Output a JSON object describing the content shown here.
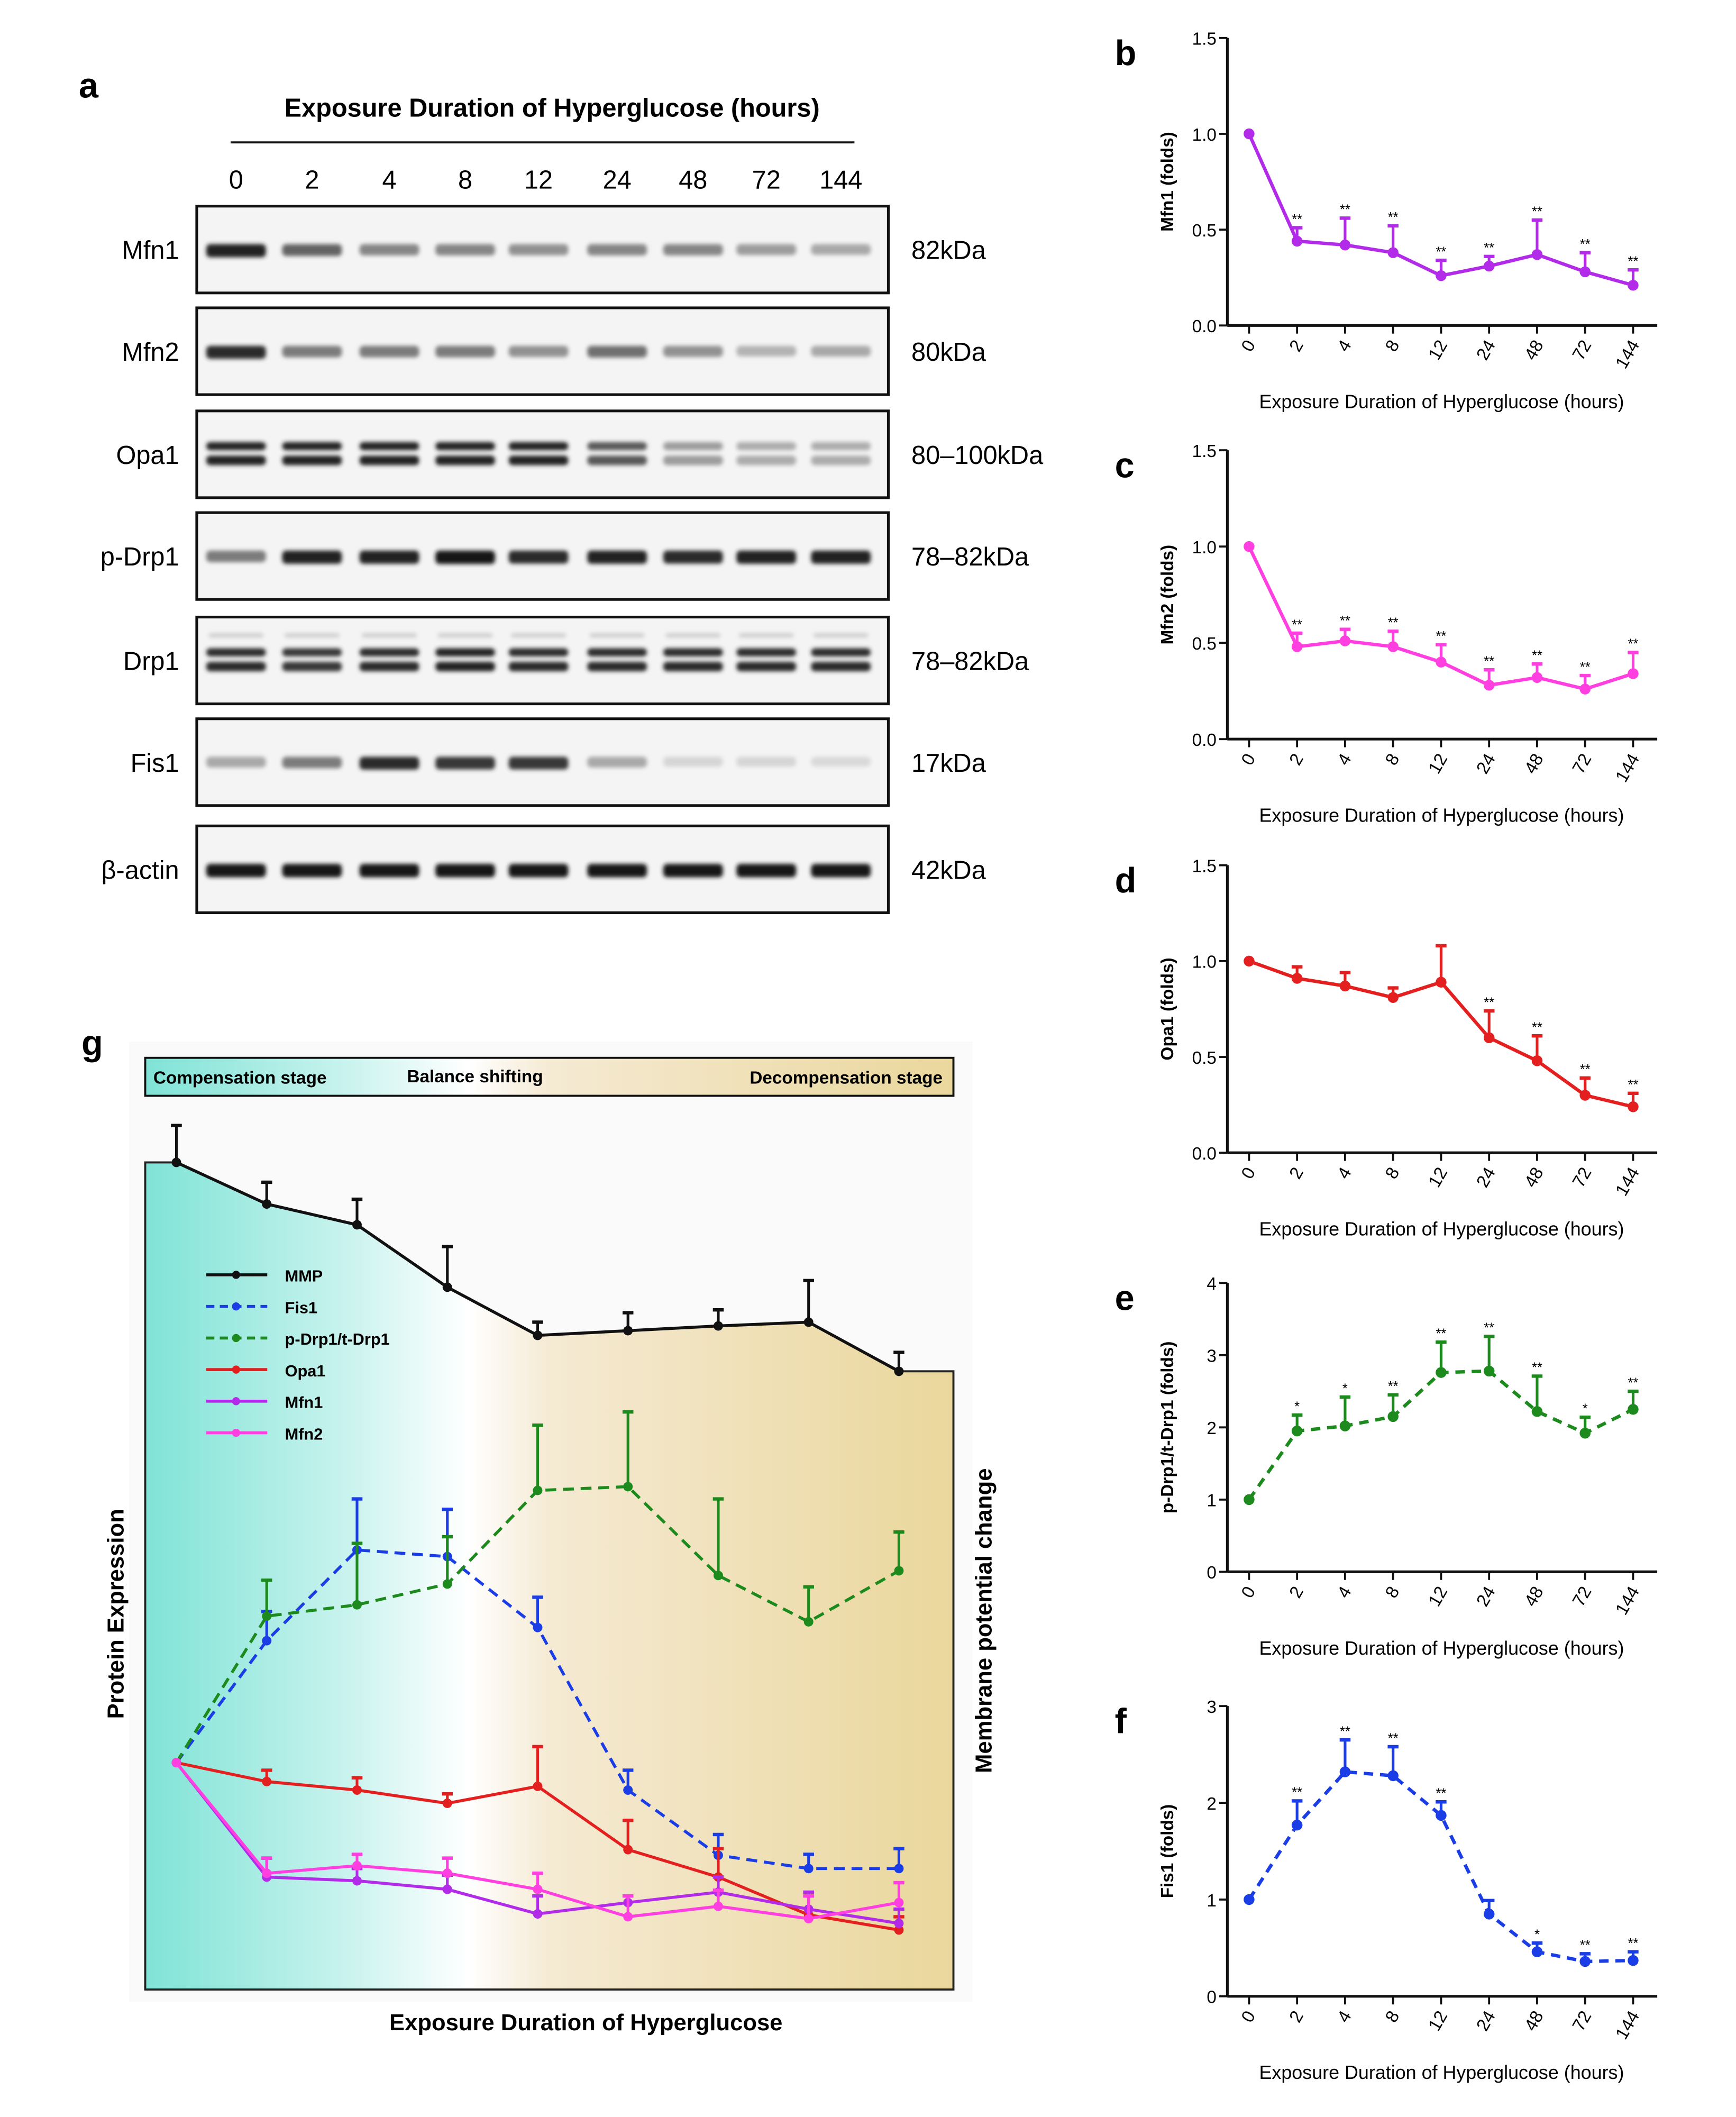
{
  "panel_labels": {
    "a": "a",
    "b": "b",
    "c": "c",
    "d": "d",
    "e": "e",
    "f": "f",
    "g": "g"
  },
  "blot": {
    "title": "Exposure Duration of Hyperglucose (hours)",
    "lanes": [
      "0",
      "2",
      "4",
      "8",
      "12",
      "24",
      "48",
      "72",
      "144"
    ],
    "rows": [
      {
        "label": "Mfn1",
        "kda": "82kDa",
        "bands": "single",
        "intensity": [
          0.9,
          0.6,
          0.45,
          0.45,
          0.4,
          0.45,
          0.45,
          0.35,
          0.3
        ]
      },
      {
        "label": "Mfn2",
        "kda": "80kDa",
        "bands": "single",
        "intensity": [
          0.85,
          0.5,
          0.5,
          0.5,
          0.4,
          0.55,
          0.4,
          0.25,
          0.3
        ]
      },
      {
        "label": "Opa1",
        "kda": "80–100kDa",
        "bands": "double",
        "intensity": [
          0.9,
          0.9,
          0.9,
          0.9,
          0.9,
          0.65,
          0.35,
          0.28,
          0.28
        ]
      },
      {
        "label": "p-Drp1",
        "kda": "78–82kDa",
        "bands": "single",
        "intensity": [
          0.5,
          0.9,
          0.9,
          0.95,
          0.85,
          0.9,
          0.85,
          0.9,
          0.9
        ]
      },
      {
        "label": "Drp1",
        "kda": "78–82kDa",
        "bands": "double",
        "intensity": [
          0.85,
          0.8,
          0.85,
          0.9,
          0.85,
          0.85,
          0.85,
          0.85,
          0.85
        ]
      },
      {
        "label": "Fis1",
        "kda": "17kDa",
        "bands": "single",
        "intensity": [
          0.3,
          0.5,
          0.85,
          0.8,
          0.8,
          0.3,
          0.1,
          0.1,
          0.08
        ]
      },
      {
        "label": "β-actin",
        "kda": "42kDa",
        "bands": "single",
        "intensity": [
          0.95,
          0.95,
          0.95,
          0.95,
          0.95,
          0.95,
          0.95,
          0.95,
          0.95
        ]
      }
    ]
  },
  "chart_data": [
    {
      "panel": "b",
      "type": "line",
      "categories": [
        "0",
        "2",
        "4",
        "8",
        "12",
        "24",
        "48",
        "72",
        "144"
      ],
      "values": [
        1.0,
        0.44,
        0.42,
        0.38,
        0.26,
        0.31,
        0.37,
        0.28,
        0.21
      ],
      "error_upper": [
        1.0,
        0.51,
        0.56,
        0.52,
        0.34,
        0.36,
        0.55,
        0.38,
        0.29
      ],
      "significance": [
        "",
        "**",
        "**",
        "**",
        "**",
        "**",
        "**",
        "**",
        "**"
      ],
      "ylabel": "Mfn1 (folds)",
      "xlabel": "Exposure Duration of Hyperglucose (hours)",
      "ylim": [
        0,
        1.5
      ],
      "yticks": [
        "0.0",
        "0.5",
        "1.0",
        "1.5"
      ],
      "color": "#b22be8",
      "dashed": false
    },
    {
      "panel": "c",
      "type": "line",
      "categories": [
        "0",
        "2",
        "4",
        "8",
        "12",
        "24",
        "48",
        "72",
        "144"
      ],
      "values": [
        1.0,
        0.48,
        0.51,
        0.48,
        0.4,
        0.28,
        0.32,
        0.26,
        0.34
      ],
      "error_upper": [
        1.0,
        0.55,
        0.57,
        0.56,
        0.49,
        0.36,
        0.39,
        0.33,
        0.45
      ],
      "significance": [
        "",
        "**",
        "**",
        "**",
        "**",
        "**",
        "**",
        "**",
        "**"
      ],
      "ylabel": "Mfn2 (folds)",
      "xlabel": "Exposure Duration of Hyperglucose (hours)",
      "ylim": [
        0,
        1.5
      ],
      "yticks": [
        "0.0",
        "0.5",
        "1.0",
        "1.5"
      ],
      "color": "#ff3fe0",
      "dashed": false
    },
    {
      "panel": "d",
      "type": "line",
      "categories": [
        "0",
        "2",
        "4",
        "8",
        "12",
        "24",
        "48",
        "72",
        "144"
      ],
      "values": [
        1.0,
        0.91,
        0.87,
        0.81,
        0.89,
        0.6,
        0.48,
        0.3,
        0.24
      ],
      "error_upper": [
        1.0,
        0.97,
        0.94,
        0.86,
        1.08,
        0.74,
        0.61,
        0.39,
        0.31
      ],
      "significance": [
        "",
        "",
        "",
        "",
        "",
        "**",
        "**",
        "**",
        "**"
      ],
      "ylabel": "Opa1 (folds)",
      "xlabel": "Exposure Duration of Hyperglucose (hours)",
      "ylim": [
        0,
        1.5
      ],
      "yticks": [
        "0.0",
        "0.5",
        "1.0",
        "1.5"
      ],
      "color": "#e3201f",
      "dashed": false
    },
    {
      "panel": "e",
      "type": "line",
      "categories": [
        "0",
        "2",
        "4",
        "8",
        "12",
        "24",
        "48",
        "72",
        "144"
      ],
      "values": [
        1.0,
        1.95,
        2.02,
        2.15,
        2.76,
        2.78,
        2.22,
        1.92,
        2.25
      ],
      "error_upper": [
        1.0,
        2.17,
        2.42,
        2.45,
        3.18,
        3.26,
        2.71,
        2.14,
        2.5
      ],
      "significance": [
        "",
        "*",
        "*",
        "**",
        "**",
        "**",
        "**",
        "*",
        "**"
      ],
      "ylabel": "p-Drp1/t-Drp1 (folds)",
      "xlabel": "Exposure Duration of Hyperglucose (hours)",
      "ylim": [
        0,
        4
      ],
      "yticks": [
        "0",
        "1",
        "2",
        "3",
        "4"
      ],
      "color": "#1d8a1d",
      "dashed": true
    },
    {
      "panel": "f",
      "type": "line",
      "categories": [
        "0",
        "2",
        "4",
        "8",
        "12",
        "24",
        "48",
        "72",
        "144"
      ],
      "values": [
        1.0,
        1.77,
        2.32,
        2.28,
        1.87,
        0.85,
        0.46,
        0.36,
        0.37
      ],
      "error_upper": [
        1.0,
        2.02,
        2.65,
        2.58,
        2.01,
        0.99,
        0.55,
        0.44,
        0.46
      ],
      "significance": [
        "",
        "**",
        "**",
        "**",
        "**",
        "",
        "*",
        "**",
        "**"
      ],
      "ylabel": "Fis1 (folds)",
      "xlabel": "Exposure Duration of Hyperglucose (hours)",
      "ylim": [
        0,
        3
      ],
      "yticks": [
        "0",
        "1",
        "2",
        "3"
      ],
      "color": "#1a3de6",
      "dashed": true
    },
    {
      "panel": "g",
      "type": "line",
      "ylim": [
        0,
        100
      ],
      "xlabel": "Exposure Duration of Hyperglucose",
      "ylabel": "Protein Expression",
      "ylabel_right": "Membrane potential change",
      "stages": [
        "Compensation stage",
        "Balance shifting",
        "Decompensation stage"
      ],
      "legend_position": "upper-left",
      "series": [
        {
          "name": "MMP",
          "color": "#111111",
          "dashed": false,
          "values": [
            87.5,
            83.1,
            80.9,
            74.3,
            69.2,
            69.7,
            70.2,
            70.6,
            65.4
          ],
          "error_upper": [
            91.4,
            85.4,
            83.6,
            78.6,
            70.6,
            71.6,
            71.9,
            75.0,
            67.4
          ]
        },
        {
          "name": "Fis1",
          "color": "#1a3de6",
          "dashed": true,
          "values": [
            24.0,
            36.9,
            46.5,
            45.8,
            38.3,
            21.1,
            14.2,
            12.8,
            12.8
          ],
          "error_upper": [
            24.0,
            40.0,
            51.9,
            50.8,
            41.5,
            23.2,
            16.4,
            14.3,
            14.9
          ]
        },
        {
          "name": "p-Drp1/t-Drp1",
          "color": "#1d8a1d",
          "dashed": true,
          "values": [
            24.0,
            39.5,
            40.7,
            42.9,
            52.8,
            53.2,
            43.8,
            38.9,
            44.3
          ],
          "error_upper": [
            24.0,
            43.3,
            47.2,
            47.9,
            59.7,
            61.1,
            51.9,
            42.6,
            48.4
          ]
        },
        {
          "name": "Opa1",
          "color": "#e3201f",
          "dashed": false,
          "values": [
            24.0,
            22.0,
            21.1,
            19.7,
            21.5,
            14.8,
            11.9,
            7.9,
            6.3
          ],
          "error_upper": [
            24.0,
            23.2,
            22.4,
            20.7,
            25.7,
            17.9,
            14.9,
            9.9,
            7.7
          ]
        },
        {
          "name": "Mfn1",
          "color": "#b22be8",
          "dashed": false,
          "values": [
            24.0,
            11.9,
            11.5,
            10.6,
            8.0,
            9.2,
            10.3,
            8.5,
            7.0
          ],
          "error_upper": [
            24.0,
            13.9,
            12.8,
            12.1,
            9.9,
            9.9,
            11.9,
            10.3,
            8.5
          ]
        },
        {
          "name": "Mfn2",
          "color": "#ff3fe0",
          "dashed": false,
          "values": [
            24.0,
            12.3,
            13.1,
            12.3,
            10.6,
            7.7,
            8.8,
            7.5,
            9.2
          ],
          "error_upper": [
            24.0,
            13.9,
            14.3,
            13.9,
            12.3,
            9.9,
            10.5,
            9.9,
            11.3
          ]
        }
      ]
    }
  ]
}
